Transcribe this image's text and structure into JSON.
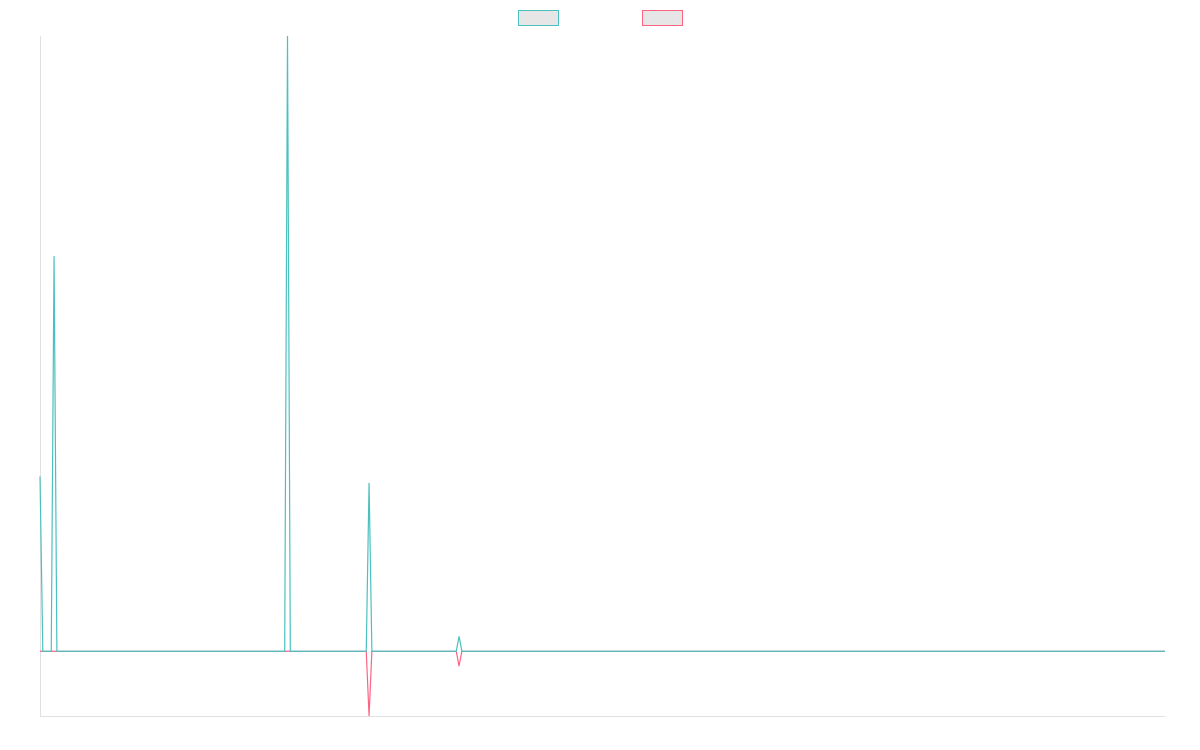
{
  "chart_data": {
    "type": "line",
    "x": [
      0,
      1,
      4,
      5,
      6,
      87,
      88,
      89,
      116,
      117,
      118,
      148,
      149,
      150,
      400
    ],
    "xlim": [
      0,
      400
    ],
    "ylim": [
      -10,
      95
    ],
    "series": [
      {
        "color": "#ff6384",
        "values": [
          0,
          0,
          0,
          0,
          0,
          0,
          0,
          0,
          0,
          -10,
          0,
          0,
          -2.3,
          0,
          0
        ]
      },
      {
        "color": "#4bc0c0",
        "values": [
          27,
          0,
          0,
          61,
          0,
          0,
          95,
          0,
          0,
          26,
          0,
          0,
          2.3,
          0,
          0
        ]
      }
    ],
    "legend": "top"
  }
}
